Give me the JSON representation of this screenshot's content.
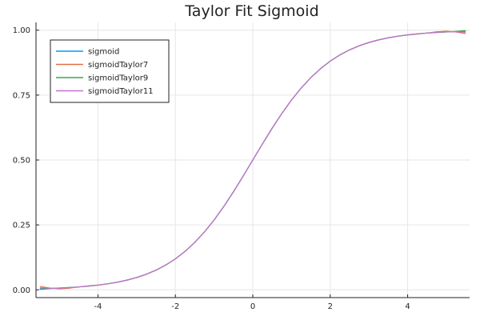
{
  "chart_data": {
    "type": "line",
    "title": "Taylor Fit Sigmoid",
    "xlabel": "",
    "ylabel": "",
    "xlim": [
      -5.6,
      5.6
    ],
    "ylim": [
      -0.03,
      1.03
    ],
    "xticks": [
      -4,
      -2,
      0,
      2,
      4
    ],
    "xtick_labels": [
      "-4",
      "-2",
      "0",
      "2",
      "4"
    ],
    "yticks": [
      0,
      0.25,
      0.5,
      0.75,
      1
    ],
    "ytick_labels": [
      "0.00",
      "0.25",
      "0.50",
      "0.75",
      "1.00"
    ],
    "grid": true,
    "legend_position": "top-left",
    "x": [
      -5.5,
      -5.25,
      -5.0,
      -4.75,
      -4.5,
      -4.25,
      -4.0,
      -3.75,
      -3.5,
      -3.25,
      -3.0,
      -2.75,
      -2.5,
      -2.25,
      -2.0,
      -1.75,
      -1.5,
      -1.25,
      -1.0,
      -0.75,
      -0.5,
      -0.25,
      0.0,
      0.25,
      0.5,
      0.75,
      1.0,
      1.25,
      1.5,
      1.75,
      2.0,
      2.25,
      2.5,
      2.75,
      3.0,
      3.25,
      3.5,
      3.75,
      4.0,
      4.25,
      4.5,
      4.75,
      5.0,
      5.25,
      5.5
    ],
    "series": [
      {
        "name": "sigmoid",
        "color": "#009AFA",
        "values": [
          0.0041,
          0.0052,
          0.0067,
          0.0086,
          0.011,
          0.0141,
          0.018,
          0.023,
          0.0293,
          0.0374,
          0.0474,
          0.0601,
          0.0759,
          0.0953,
          0.1192,
          0.148,
          0.1824,
          0.2227,
          0.2689,
          0.3208,
          0.3775,
          0.4378,
          0.5,
          0.5622,
          0.6225,
          0.6792,
          0.7311,
          0.7773,
          0.8176,
          0.852,
          0.8808,
          0.9047,
          0.9241,
          0.9399,
          0.9526,
          0.9626,
          0.9707,
          0.977,
          0.982,
          0.9859,
          0.989,
          0.9914,
          0.9933,
          0.9948,
          0.9959
        ]
      },
      {
        "name": "sigmoidTaylor7",
        "color": "#E36F47",
        "values": [
          0.013,
          0.007,
          0.004,
          0.006,
          0.011,
          0.015,
          0.0185,
          0.0232,
          0.0292,
          0.037,
          0.0468,
          0.0594,
          0.0752,
          0.0948,
          0.119,
          0.148,
          0.1825,
          0.2228,
          0.269,
          0.3208,
          0.3775,
          0.4378,
          0.5,
          0.5622,
          0.6225,
          0.6792,
          0.731,
          0.7772,
          0.8175,
          0.852,
          0.881,
          0.9052,
          0.9248,
          0.9406,
          0.9532,
          0.963,
          0.9708,
          0.9768,
          0.9815,
          0.985,
          0.989,
          0.994,
          0.996,
          0.993,
          0.987
        ]
      },
      {
        "name": "sigmoidTaylor9",
        "color": "#3EA44E",
        "values": [
          0.0015,
          0.0045,
          0.007,
          0.0088,
          0.011,
          0.014,
          0.0179,
          0.0229,
          0.0293,
          0.0374,
          0.0475,
          0.0602,
          0.076,
          0.0954,
          0.1192,
          0.148,
          0.1824,
          0.2227,
          0.2689,
          0.3208,
          0.3775,
          0.4378,
          0.5,
          0.5622,
          0.6225,
          0.6792,
          0.7311,
          0.7773,
          0.8176,
          0.852,
          0.8808,
          0.9046,
          0.924,
          0.9398,
          0.9525,
          0.9626,
          0.9707,
          0.9771,
          0.9821,
          0.986,
          0.989,
          0.9912,
          0.993,
          0.9955,
          0.9985
        ]
      },
      {
        "name": "sigmoidTaylor11",
        "color": "#C271D2",
        "values": [
          0.008,
          0.006,
          0.0063,
          0.0084,
          0.011,
          0.0141,
          0.018,
          0.023,
          0.0293,
          0.0374,
          0.0474,
          0.0601,
          0.0759,
          0.0953,
          0.1192,
          0.148,
          0.1824,
          0.2227,
          0.2689,
          0.3208,
          0.3775,
          0.4378,
          0.5,
          0.5622,
          0.6225,
          0.6792,
          0.7311,
          0.7773,
          0.8176,
          0.852,
          0.8808,
          0.9047,
          0.9241,
          0.9399,
          0.9526,
          0.9626,
          0.9707,
          0.977,
          0.982,
          0.9859,
          0.989,
          0.9916,
          0.9937,
          0.994,
          0.992
        ]
      }
    ]
  }
}
